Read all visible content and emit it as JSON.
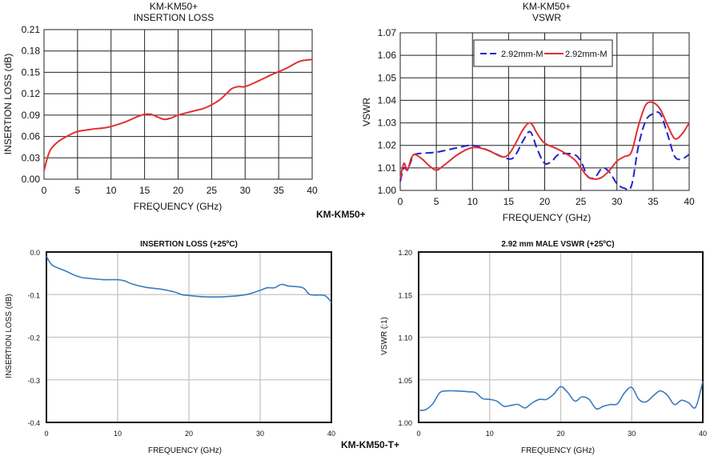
{
  "labels": {
    "top_group": "KM-KM50+",
    "bottom_group": "KM-KM50-T+"
  },
  "chart_data": [
    {
      "type": "line",
      "title": [
        "KM-KM50+",
        "INSERTION LOSS"
      ],
      "xlabel": "FREQUENCY (GHz)",
      "ylabel": "INSERTION LOSS (dB)",
      "xlim": [
        0,
        40
      ],
      "ylim": [
        0,
        0.21
      ],
      "xticks": [
        "0",
        "5",
        "10",
        "15",
        "20",
        "25",
        "30",
        "35",
        "40"
      ],
      "yticks": [
        "0.00",
        "0.03",
        "0.06",
        "0.09",
        "0.12",
        "0.15",
        "0.18",
        "0.21"
      ],
      "grid": true,
      "series": [
        {
          "color": "#e03030",
          "dash": false,
          "x": [
            0,
            0.5,
            1,
            2,
            3,
            4,
            5,
            7,
            9,
            10,
            12,
            14,
            15,
            16,
            17,
            18,
            19,
            20,
            22,
            24,
            26,
            27,
            28,
            29,
            30,
            32,
            34,
            36,
            38,
            39,
            40
          ],
          "y": [
            0.012,
            0.03,
            0.042,
            0.052,
            0.058,
            0.063,
            0.067,
            0.07,
            0.072,
            0.074,
            0.08,
            0.088,
            0.091,
            0.091,
            0.087,
            0.084,
            0.086,
            0.09,
            0.095,
            0.1,
            0.11,
            0.118,
            0.127,
            0.13,
            0.13,
            0.138,
            0.147,
            0.155,
            0.165,
            0.167,
            0.168
          ]
        }
      ]
    },
    {
      "type": "line",
      "title": [
        "KM-KM50+",
        "VSWR"
      ],
      "xlabel": "FREQUENCY (GHz)",
      "ylabel": "VSWR",
      "xlim": [
        0,
        40
      ],
      "ylim": [
        1.0,
        1.07
      ],
      "xticks": [
        "0",
        "5",
        "10",
        "15",
        "20",
        "25",
        "30",
        "35",
        "40"
      ],
      "yticks": [
        "1.00",
        "1.01",
        "1.02",
        "1.03",
        "1.04",
        "1.05",
        "1.06",
        "1.07"
      ],
      "grid": true,
      "legend": "top-center",
      "series": [
        {
          "name": "2.92mm-M",
          "color": "#2222cc",
          "dash": true,
          "x": [
            0,
            0.5,
            1,
            1.5,
            2,
            5,
            8,
            10,
            12,
            15,
            16,
            17,
            18,
            19,
            20,
            21,
            22,
            24,
            25,
            26,
            27,
            28,
            29,
            30,
            31,
            32,
            33,
            34,
            35,
            36,
            37,
            38,
            39,
            40
          ],
          "y": [
            1.004,
            1.01,
            1.009,
            1.013,
            1.016,
            1.017,
            1.019,
            1.02,
            1.018,
            1.014,
            1.016,
            1.022,
            1.026,
            1.018,
            1.012,
            1.013,
            1.016,
            1.016,
            1.013,
            1.006,
            1.006,
            1.01,
            1.008,
            1.003,
            1.001,
            1.002,
            1.02,
            1.031,
            1.034,
            1.034,
            1.025,
            1.015,
            1.014,
            1.016
          ]
        },
        {
          "name": "2.92mm-M",
          "color": "#e03030",
          "dash": false,
          "x": [
            0,
            0.5,
            1,
            1.5,
            2,
            3,
            4,
            5,
            6,
            8,
            10,
            12,
            14,
            15,
            16,
            17,
            18,
            19,
            20,
            22,
            24,
            25,
            26,
            27,
            28,
            29,
            30,
            31,
            32,
            33,
            34,
            35,
            36,
            37,
            38,
            39,
            40
          ],
          "y": [
            1.005,
            1.012,
            1.009,
            1.014,
            1.016,
            1.014,
            1.011,
            1.009,
            1.011,
            1.016,
            1.019,
            1.018,
            1.015,
            1.016,
            1.021,
            1.027,
            1.03,
            1.025,
            1.021,
            1.018,
            1.014,
            1.01,
            1.006,
            1.005,
            1.006,
            1.009,
            1.013,
            1.015,
            1.017,
            1.029,
            1.038,
            1.039,
            1.036,
            1.029,
            1.023,
            1.025,
            1.03
          ]
        }
      ]
    },
    {
      "type": "line",
      "title": [
        "INSERTION LOSS (+25ºC)"
      ],
      "xlabel": "FREQUENCY  (GHz)",
      "ylabel": "INSERTION LOSS (dB)",
      "xlim": [
        0,
        40
      ],
      "ylim": [
        -0.4,
        0.0
      ],
      "xticks": [
        "0",
        "10",
        "20",
        "30",
        "40"
      ],
      "yticks": [
        "-0.4",
        "-0.3",
        "-0.2",
        "-0.1",
        "0.0"
      ],
      "grid": true,
      "series": [
        {
          "color": "#3a7bbf",
          "dash": false,
          "x": [
            0,
            0.5,
            1,
            2,
            3,
            4,
            5,
            6,
            8,
            10,
            11,
            12,
            14,
            16,
            18,
            19,
            20,
            22,
            25,
            28,
            30,
            31,
            32,
            33,
            34,
            36,
            37,
            39,
            40
          ],
          "y": [
            -0.01,
            -0.025,
            -0.033,
            -0.04,
            -0.047,
            -0.055,
            -0.06,
            -0.062,
            -0.065,
            -0.065,
            -0.068,
            -0.075,
            -0.083,
            -0.087,
            -0.094,
            -0.1,
            -0.102,
            -0.105,
            -0.105,
            -0.1,
            -0.09,
            -0.084,
            -0.084,
            -0.076,
            -0.08,
            -0.084,
            -0.1,
            -0.102,
            -0.118
          ]
        }
      ]
    },
    {
      "type": "line",
      "title": [
        "2.92 mm MALE VSWR (+25ºC)"
      ],
      "xlabel": "FREQUENCY  (GHz)",
      "ylabel": "VSWR (:1)",
      "xlim": [
        0,
        40
      ],
      "ylim": [
        1.0,
        1.2
      ],
      "xticks": [
        "0",
        "10",
        "20",
        "30",
        "40"
      ],
      "yticks": [
        "1.00",
        "1.05",
        "1.10",
        "1.15",
        "1.20"
      ],
      "grid": true,
      "series": [
        {
          "color": "#3a7bbf",
          "dash": false,
          "x": [
            0,
            1,
            2,
            3,
            4,
            5,
            7,
            8,
            9,
            10,
            11,
            12,
            13,
            14,
            15,
            16,
            17,
            18,
            19,
            20,
            21,
            22,
            23,
            24,
            25,
            26,
            27,
            28,
            29,
            30,
            31,
            32,
            33,
            34,
            35,
            36,
            37,
            38,
            39,
            40
          ],
          "y": [
            1.014,
            1.015,
            1.022,
            1.035,
            1.037,
            1.037,
            1.036,
            1.035,
            1.028,
            1.027,
            1.025,
            1.019,
            1.02,
            1.021,
            1.017,
            1.023,
            1.027,
            1.027,
            1.033,
            1.042,
            1.035,
            1.025,
            1.03,
            1.027,
            1.016,
            1.019,
            1.021,
            1.022,
            1.035,
            1.041,
            1.027,
            1.024,
            1.031,
            1.037,
            1.032,
            1.021,
            1.026,
            1.023,
            1.018,
            1.048
          ]
        }
      ]
    }
  ]
}
